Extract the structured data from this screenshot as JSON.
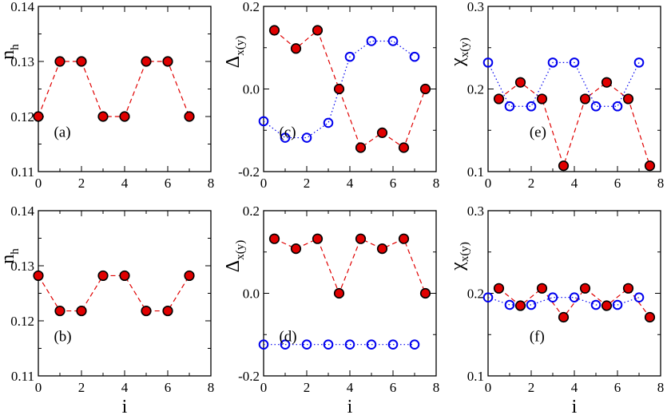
{
  "colors": {
    "red_fill": "#e00000",
    "red_line": "#e00000",
    "blue_line": "#0000ee",
    "axis": "#000000"
  },
  "chart_data": [
    {
      "id": "nh-top",
      "type": "scatter",
      "tag": "(a)",
      "ylabel": {
        "main": "n",
        "sub": "h"
      },
      "xlabel": "",
      "xlim": [
        0,
        8
      ],
      "ylim": [
        0.11,
        0.14
      ],
      "xticks": [
        "0",
        "2",
        "4",
        "6",
        "8"
      ],
      "yticks": [
        "0.11",
        "0.12",
        "0.13",
        "0.14"
      ],
      "series": [
        {
          "name": "n_h",
          "style": "red-filled-dashed",
          "x": [
            0,
            1,
            2,
            3,
            4,
            5,
            6,
            7
          ],
          "y": [
            0.12,
            0.13,
            0.13,
            0.12,
            0.12,
            0.13,
            0.13,
            0.12
          ]
        }
      ]
    },
    {
      "id": "delta-top",
      "type": "scatter",
      "tag": "(c)",
      "ylabel": {
        "main": "Δ",
        "sub": "x(y)"
      },
      "xlabel": "",
      "xlim": [
        0,
        8
      ],
      "ylim": [
        -0.2,
        0.2
      ],
      "xticks": [
        "0",
        "2",
        "4",
        "6",
        "8"
      ],
      "yticks": [
        "-0.2",
        "0.0",
        "0.2"
      ],
      "series": [
        {
          "name": "Δ_x",
          "style": "red-filled-dashed",
          "x": [
            0.5,
            1.5,
            2.5,
            3.5,
            4.5,
            5.5,
            6.5,
            7.5
          ],
          "y": [
            0.142,
            0.098,
            0.142,
            0.0,
            -0.142,
            -0.106,
            -0.142,
            0.0
          ]
        },
        {
          "name": "Δ_y",
          "style": "blue-open-dotted",
          "x": [
            0,
            1,
            2,
            3,
            4,
            5,
            6,
            7
          ],
          "y": [
            -0.078,
            -0.118,
            -0.118,
            -0.082,
            0.078,
            0.116,
            0.116,
            0.078
          ]
        }
      ]
    },
    {
      "id": "chi-top",
      "type": "scatter",
      "tag": "(e)",
      "ylabel": {
        "main": "χ",
        "sub": "x(y)"
      },
      "xlabel": "",
      "xlim": [
        0,
        8
      ],
      "ylim": [
        0.1,
        0.3
      ],
      "xticks": [
        "0",
        "2",
        "4",
        "6",
        "8"
      ],
      "yticks": [
        "0.1",
        "0.2",
        "0.3"
      ],
      "series": [
        {
          "name": "χ_x",
          "style": "red-filled-dashed",
          "x": [
            0.5,
            1.5,
            2.5,
            3.5,
            4.5,
            5.5,
            6.5,
            7.5
          ],
          "y": [
            0.188,
            0.208,
            0.188,
            0.107,
            0.188,
            0.208,
            0.188,
            0.107
          ]
        },
        {
          "name": "χ_y",
          "style": "blue-open-dotted",
          "x": [
            0,
            1,
            2,
            3,
            4,
            5,
            6,
            7
          ],
          "y": [
            0.232,
            0.179,
            0.179,
            0.232,
            0.232,
            0.179,
            0.179,
            0.232
          ]
        }
      ]
    },
    {
      "id": "nh-bottom",
      "type": "scatter",
      "tag": "(b)",
      "ylabel": {
        "main": "n",
        "sub": "h"
      },
      "xlabel": "i",
      "xlim": [
        0,
        8
      ],
      "ylim": [
        0.11,
        0.14
      ],
      "xticks": [
        "0",
        "2",
        "4",
        "6",
        "8"
      ],
      "yticks": [
        "0.11",
        "0.12",
        "0.13",
        "0.14"
      ],
      "series": [
        {
          "name": "n_h",
          "style": "red-filled-dashed",
          "x": [
            0,
            1,
            2,
            3,
            4,
            5,
            6,
            7
          ],
          "y": [
            0.1282,
            0.1218,
            0.1218,
            0.1282,
            0.1282,
            0.1218,
            0.1218,
            0.1282
          ]
        }
      ]
    },
    {
      "id": "delta-bottom",
      "type": "scatter",
      "tag": "(d)",
      "ylabel": {
        "main": "Δ",
        "sub": "x(y)"
      },
      "xlabel": "i",
      "xlim": [
        0,
        8
      ],
      "ylim": [
        -0.2,
        0.2
      ],
      "xticks": [
        "0",
        "2",
        "4",
        "6",
        "8"
      ],
      "yticks": [
        "-0.2",
        "0.0",
        "0.2"
      ],
      "series": [
        {
          "name": "Δ_x",
          "style": "red-filled-dashed",
          "x": [
            0.5,
            1.5,
            2.5,
            3.5,
            4.5,
            5.5,
            6.5,
            7.5
          ],
          "y": [
            0.132,
            0.108,
            0.132,
            0.0,
            0.132,
            0.108,
            0.132,
            0.0
          ]
        },
        {
          "name": "Δ_y",
          "style": "blue-open-dotted",
          "x": [
            0,
            1,
            2,
            3,
            4,
            5,
            6,
            7
          ],
          "y": [
            -0.124,
            -0.124,
            -0.124,
            -0.124,
            -0.124,
            -0.124,
            -0.124,
            -0.124
          ]
        }
      ]
    },
    {
      "id": "chi-bottom",
      "type": "scatter",
      "tag": "(f)",
      "ylabel": {
        "main": "χ",
        "sub": "x(y)"
      },
      "xlabel": "i",
      "xlim": [
        0,
        8
      ],
      "ylim": [
        0.1,
        0.3
      ],
      "xticks": [
        "0",
        "2",
        "4",
        "6",
        "8"
      ],
      "yticks": [
        "0.1",
        "0.2",
        "0.3"
      ],
      "series": [
        {
          "name": "χ_x",
          "style": "red-filled-dashed",
          "x": [
            0.5,
            1.5,
            2.5,
            3.5,
            4.5,
            5.5,
            6.5,
            7.5
          ],
          "y": [
            0.206,
            0.185,
            0.206,
            0.171,
            0.206,
            0.185,
            0.206,
            0.171
          ]
        },
        {
          "name": "χ_y",
          "style": "blue-open-dotted",
          "x": [
            0,
            1,
            2,
            3,
            4,
            5,
            6,
            7
          ],
          "y": [
            0.195,
            0.186,
            0.186,
            0.195,
            0.195,
            0.186,
            0.186,
            0.195
          ]
        }
      ]
    }
  ]
}
